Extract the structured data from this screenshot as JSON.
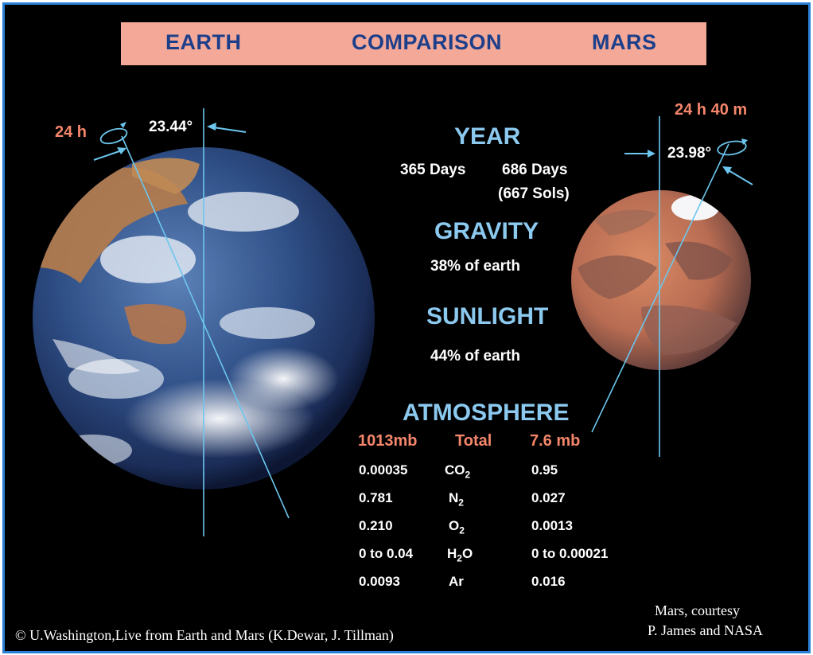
{
  "header": {
    "left": "EARTH",
    "center": "COMPARISON",
    "right": "MARS"
  },
  "earth": {
    "rotation": "24 h",
    "tilt": "23.44°"
  },
  "mars": {
    "rotation": "24 h 40 m",
    "tilt": "23.98°"
  },
  "year": {
    "title": "YEAR",
    "earth": "365 Days",
    "mars": "686 Days",
    "mars_sols": "(667 Sols)"
  },
  "gravity": {
    "title": "GRAVITY",
    "value": "38% of earth"
  },
  "sunlight": {
    "title": "SUNLIGHT",
    "value": "44% of earth"
  },
  "atmosphere": {
    "title": "ATMOSPHERE",
    "earth_total": "1013mb",
    "total_label": "Total",
    "mars_total": "7.6 mb",
    "rows": [
      {
        "earth": "0.00035",
        "gas": "CO",
        "sub": "2",
        "mars": "0.95"
      },
      {
        "earth": "0.781",
        "gas": "N",
        "sub": "2",
        "mars": "0.027"
      },
      {
        "earth": "0.210",
        "gas": "O",
        "sub": "2",
        "mars": "0.0013"
      },
      {
        "earth": "0 to 0.04",
        "gas": "H",
        "sub": "2",
        "gas2": "O",
        "mars": "0 to 0.00021"
      },
      {
        "earth": "0.0093",
        "gas": "Ar",
        "sub": "",
        "mars": "0.016"
      }
    ]
  },
  "credits": {
    "left": "© U.Washington,Live from Earth and Mars  (K.Dewar, J. Tillman)",
    "right_line1": "Mars, courtesy",
    "right_line2": "P. James and NASA"
  },
  "colors": {
    "background": "#000000",
    "header_bg": "#f4a898",
    "header_text": "#1d3f8a",
    "title_cyan": "#8cc9ef",
    "accent_red": "#f4866b",
    "axis_line": "#6cc6ee",
    "border": "#2a7fd6"
  }
}
